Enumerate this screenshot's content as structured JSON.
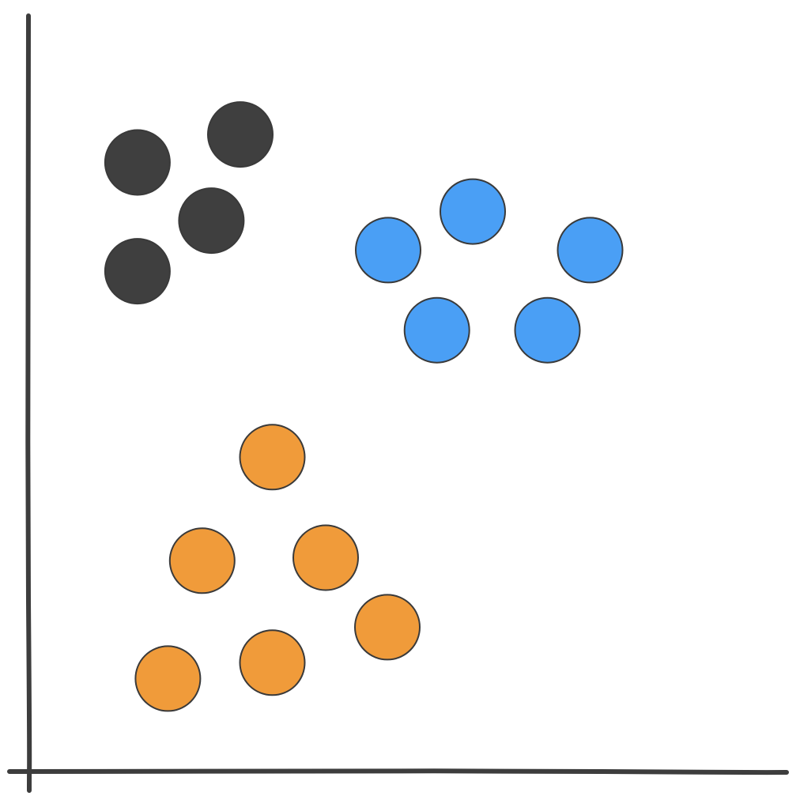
{
  "chart_data": {
    "type": "scatter",
    "title": "",
    "xlabel": "",
    "ylabel": "",
    "xlim": [
      0,
      100
    ],
    "ylim": [
      0,
      100
    ],
    "grid": false,
    "legend": "none",
    "series": [
      {
        "color": "#3f3f3f",
        "points": [
          {
            "x": 14.3,
            "y": 80.6
          },
          {
            "x": 27.8,
            "y": 84.3
          },
          {
            "x": 24.0,
            "y": 72.9
          },
          {
            "x": 14.3,
            "y": 66.2
          }
        ]
      },
      {
        "color": "#4a9ff5",
        "points": [
          {
            "x": 47.2,
            "y": 69.0
          },
          {
            "x": 58.3,
            "y": 74.1
          },
          {
            "x": 73.7,
            "y": 69.0
          },
          {
            "x": 53.6,
            "y": 58.4
          },
          {
            "x": 68.1,
            "y": 58.4
          }
        ]
      },
      {
        "color": "#f09b3a",
        "points": [
          {
            "x": 32.0,
            "y": 41.6
          },
          {
            "x": 22.8,
            "y": 27.9
          },
          {
            "x": 39.0,
            "y": 28.3
          },
          {
            "x": 47.1,
            "y": 19.1
          },
          {
            "x": 32.0,
            "y": 14.4
          },
          {
            "x": 18.3,
            "y": 12.3
          }
        ]
      }
    ]
  }
}
